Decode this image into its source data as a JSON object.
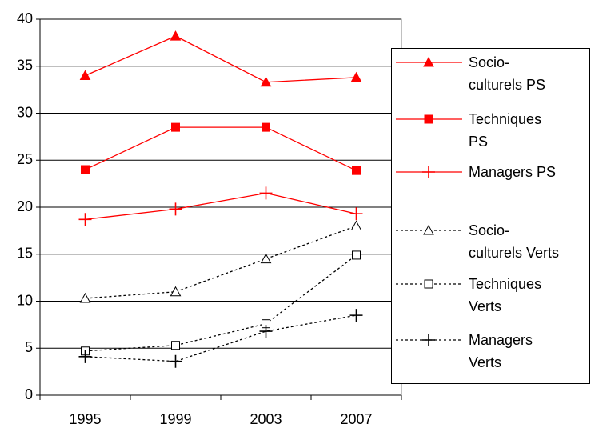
{
  "chart_data": {
    "type": "line",
    "categories": [
      "1995",
      "1999",
      "2003",
      "2007"
    ],
    "ylim": [
      0,
      40
    ],
    "yticks": [
      0,
      5,
      10,
      15,
      20,
      25,
      30,
      35,
      40
    ],
    "grid": true,
    "series": [
      {
        "name": "Socio-culturels PS",
        "color": "#ff0000",
        "dash": "solid",
        "marker": "triangle",
        "values": [
          34,
          38.2,
          33.3,
          33.8
        ]
      },
      {
        "name": "Techniques PS",
        "color": "#ff0000",
        "dash": "solid",
        "marker": "square",
        "values": [
          24,
          28.5,
          28.5,
          23.9
        ]
      },
      {
        "name": "Managers PS",
        "color": "#ff0000",
        "dash": "solid",
        "marker": "plus",
        "values": [
          18.7,
          19.8,
          21.5,
          19.3
        ]
      },
      {
        "name": "Socio-culturels Verts",
        "color": "#000000",
        "dash": "dotted",
        "marker": "triangle-open",
        "values": [
          10.3,
          11,
          14.5,
          18
        ]
      },
      {
        "name": "Techniques Verts",
        "color": "#000000",
        "dash": "dotted",
        "marker": "square-open",
        "values": [
          4.7,
          5.3,
          7.6,
          14.9
        ]
      },
      {
        "name": "Managers Verts",
        "color": "#000000",
        "dash": "dotted",
        "marker": "plus",
        "values": [
          4.1,
          3.6,
          6.8,
          8.5
        ]
      }
    ]
  }
}
